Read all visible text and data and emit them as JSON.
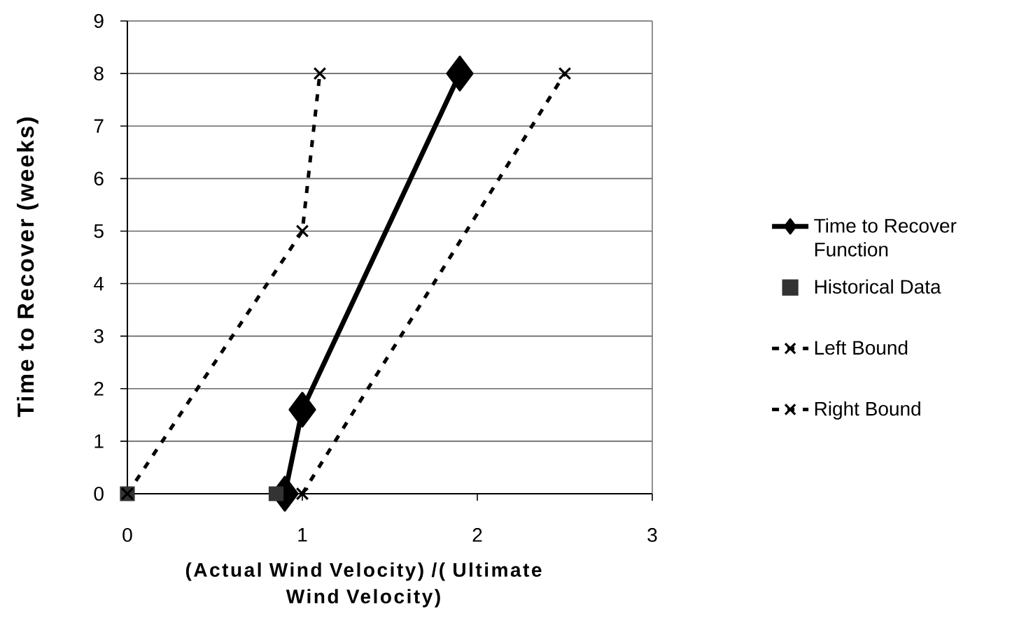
{
  "chart_data": {
    "type": "line",
    "xlabel": "(Actual Wind Velocity) /( Ultimate Wind Velocity)",
    "ylabel": "Time to Recover (weeks)",
    "xlim": [
      0,
      3
    ],
    "ylim": [
      0,
      9
    ],
    "xticks": [
      0,
      1,
      2,
      3
    ],
    "yticks": [
      0,
      1,
      2,
      3,
      4,
      5,
      6,
      7,
      8,
      9
    ],
    "grid": "y",
    "legend": "right",
    "series": [
      {
        "name": "Time to Recover Function",
        "color": "#000000",
        "x": [
          0.9,
          1.0,
          1.9
        ],
        "values": [
          0,
          1.6,
          8
        ],
        "marker": "diamond",
        "line_style": "solid"
      },
      {
        "name": "Historical Data",
        "type": "scatter",
        "color": "#333333",
        "x": [
          0,
          0.85
        ],
        "values": [
          0,
          0
        ],
        "marker": "square"
      },
      {
        "name": "Left Bound",
        "color": "#000000",
        "x": [
          0,
          1,
          1.1
        ],
        "values": [
          0,
          5,
          8
        ],
        "marker": "cross",
        "line_style": "dashed"
      },
      {
        "name": "Right Bound",
        "color": "#000000",
        "x": [
          1,
          2.5
        ],
        "values": [
          0,
          8
        ],
        "marker": "cross",
        "line_style": "dashed"
      }
    ]
  }
}
